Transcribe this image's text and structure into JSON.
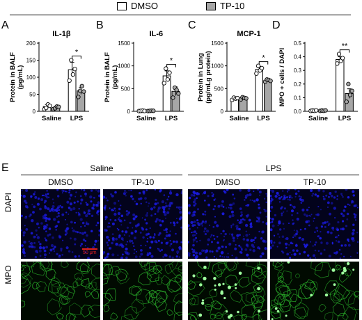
{
  "legend": {
    "items": [
      {
        "label": "DMSO",
        "fill": "#ffffff"
      },
      {
        "label": "TP-10",
        "fill": "#a6a6a6"
      }
    ]
  },
  "chart_data": [
    {
      "panel": "A",
      "type": "bar",
      "title": "IL-1β",
      "ylabel": "Protein in BALF\n(pg/mL)",
      "ylim": [
        0,
        200
      ],
      "yticks": [
        0,
        50,
        100,
        150,
        200
      ],
      "categories": [
        "Saline",
        "LPS"
      ],
      "series": [
        {
          "name": "DMSO",
          "values": [
            14,
            122
          ],
          "errors": [
            6,
            22
          ],
          "points": [
            [
              6,
              10,
              20,
              16
            ],
            [
              90,
              150,
              108,
              124
            ]
          ]
        },
        {
          "name": "TP-10",
          "values": [
            11,
            60
          ],
          "errors": [
            4,
            10
          ],
          "points": [
            [
              6,
              9,
              14,
              13
            ],
            [
              42,
              60,
              74,
              58
            ]
          ]
        }
      ],
      "significance": [
        {
          "category": "LPS",
          "label": "*"
        }
      ]
    },
    {
      "panel": "B",
      "type": "bar",
      "title": "IL-6",
      "ylabel": "Protein in BALF\n(pg/mL)",
      "ylim": [
        0,
        1500
      ],
      "yticks": [
        0,
        500,
        1000,
        1500
      ],
      "categories": [
        "Saline",
        "LPS"
      ],
      "series": [
        {
          "name": "DMSO",
          "values": [
            10,
            780
          ],
          "errors": [
            4,
            110
          ],
          "points": [
            [
              6,
              10,
              14,
              8
            ],
            [
              620,
              940,
              700,
              850
            ]
          ]
        },
        {
          "name": "TP-10",
          "values": [
            10,
            440
          ],
          "errors": [
            4,
            95
          ],
          "points": [
            [
              6,
              9,
              13,
              12
            ],
            [
              300,
              520,
              470,
              390
            ]
          ]
        }
      ],
      "significance": [
        {
          "category": "LPS",
          "label": "*"
        }
      ]
    },
    {
      "panel": "C",
      "type": "bar",
      "title": "MCP-1",
      "ylabel": "Protein in Lung\n(pg/mLg protein)",
      "ylim": [
        0,
        1500
      ],
      "yticks": [
        0,
        500,
        1000,
        1500
      ],
      "categories": [
        "Saline",
        "LPS"
      ],
      "series": [
        {
          "name": "DMSO",
          "values": [
            280,
            920
          ],
          "errors": [
            25,
            70
          ],
          "points": [
            [
              250,
              300,
              280,
              290
            ],
            [
              830,
              1000,
              900,
              950
            ]
          ]
        },
        {
          "name": "TP-10",
          "values": [
            290,
            680
          ],
          "errors": [
            25,
            30
          ],
          "points": [
            [
              260,
              310,
              295,
              285
            ],
            [
              650,
              700,
              690,
              670
            ]
          ]
        }
      ],
      "significance": [
        {
          "category": "LPS",
          "label": "*"
        }
      ]
    },
    {
      "panel": "D",
      "type": "bar",
      "title": "",
      "ylabel": "MPO + cells / DAPI",
      "ylim": [
        0,
        0.5
      ],
      "yticks": [
        0.0,
        0.1,
        0.2,
        0.3,
        0.4,
        0.5
      ],
      "categories": [
        "Saline",
        "LPS"
      ],
      "series": [
        {
          "name": "DMSO",
          "values": [
            0.005,
            0.38
          ],
          "errors": [
            0.003,
            0.02
          ],
          "points": [
            [
              0.003,
              0.006,
              0.004,
              0.007
            ],
            [
              0.35,
              0.42,
              0.37,
              0.39
            ]
          ]
        },
        {
          "name": "TP-10",
          "values": [
            0.005,
            0.13
          ],
          "errors": [
            0.003,
            0.035
          ],
          "points": [
            [
              0.003,
              0.006,
              0.004,
              0.007
            ],
            [
              0.07,
              0.2,
              0.12,
              0.15
            ]
          ]
        }
      ],
      "significance": [
        {
          "category": "LPS",
          "label": "**"
        }
      ]
    }
  ],
  "section_e": {
    "letter": "E",
    "groups": [
      {
        "label": "Saline",
        "columns": [
          "DMSO",
          "TP-10"
        ]
      },
      {
        "label": "LPS",
        "columns": [
          "DMSO",
          "TP-10"
        ]
      }
    ],
    "rows": [
      {
        "label": "DAPI",
        "color": "#1a1adc"
      },
      {
        "label": "MPO",
        "color": "#2fc42f"
      }
    ],
    "scale_bar": "50 μm",
    "mpo_positive_dots": [
      0,
      0,
      26,
      14
    ]
  }
}
